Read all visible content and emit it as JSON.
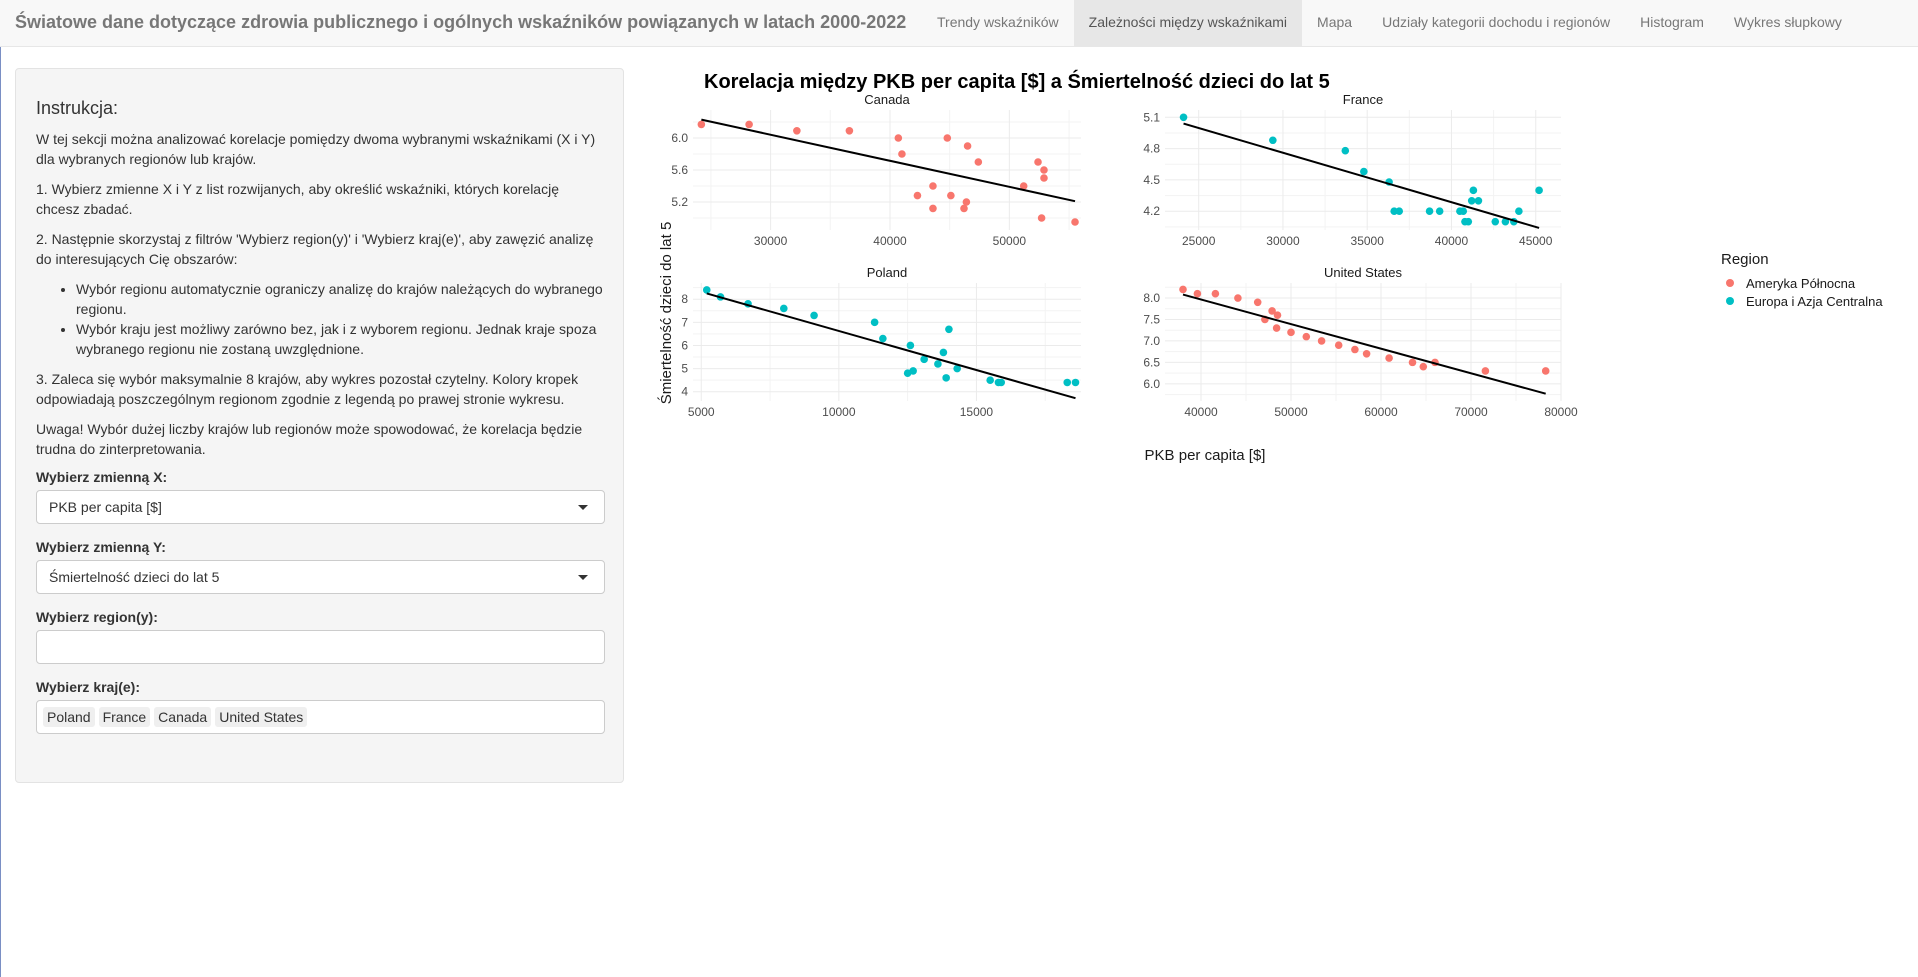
{
  "navbar": {
    "title": "Światowe dane dotyczące zdrowia publicznego i ogólnych wskaźników powiązanych w latach 2000-2022",
    "tabs": [
      {
        "label": "Trendy wskaźników",
        "active": false
      },
      {
        "label": "Zależności między wskaźnikami",
        "active": true
      },
      {
        "label": "Mapa",
        "active": false
      },
      {
        "label": "Udziały kategorii dochodu i regionów",
        "active": false
      },
      {
        "label": "Histogram",
        "active": false
      },
      {
        "label": "Wykres słupkowy",
        "active": false
      }
    ]
  },
  "sidebar": {
    "title": "Instrukcja:",
    "p1": "W tej sekcji można analizować korelacje pomiędzy dwoma wybranymi wskaźnikami (X i Y) dla wybranych regionów lub krajów.",
    "p2": "1. Wybierz zmienne X i Y z list rozwijanych, aby określić wskaźniki, których korelację chcesz zbadać.",
    "p3": "2. Następnie skorzystaj z filtrów 'Wybierz region(y)' i 'Wybierz kraj(e)', aby zawęzić analizę do interesujących Cię obszarów:",
    "bullets": [
      "Wybór regionu automatycznie ograniczy analizę do krajów należących do wybranego regionu.",
      "Wybór kraju jest możliwy zarówno bez, jak i z wyborem regionu. Jednak kraje spoza wybranego regionu nie zostaną uwzględnione."
    ],
    "p4": "3. Zaleca się wybór maksymalnie 8 krajów, aby wykres pozostał czytelny. Kolory kropek odpowiadają poszczególnym regionom zgodnie z legendą po prawej stronie wykresu.",
    "p5": "Uwaga! Wybór dużej liczby krajów lub regionów może spowodować, że korelacja będzie trudna do zinterpretowania.",
    "x_label": "Wybierz zmienną X:",
    "x_value": "PKB per capita [$]",
    "y_label": "Wybierz zmienną Y:",
    "y_value": "Śmiertelność dzieci do lat 5",
    "region_label": "Wybierz region(y):",
    "region_value": "",
    "country_label": "Wybierz kraj(e):",
    "countries": [
      "Poland",
      "France",
      "Canada",
      "United States"
    ]
  },
  "colors": {
    "north_america": "#F8766D",
    "europe_central_asia": "#00BFC4",
    "grid": "#ebebeb",
    "trend": "#000000"
  },
  "chart_data": {
    "type": "scatter",
    "title": "Korelacja między PKB per capita [$] a Śmiertelność dzieci do lat 5",
    "xlabel": "PKB per capita [$]",
    "ylabel": "Śmiertelność dzieci do lat 5",
    "legend": {
      "title": "Region",
      "position": "right",
      "entries": [
        {
          "name": "Ameryka Północna",
          "color": "#F8766D"
        },
        {
          "name": "Europa i Azja Centralna",
          "color": "#00BFC4"
        }
      ]
    },
    "facets": [
      {
        "name": "Canada",
        "region": "Ameryka Północna",
        "xlim": [
          23500,
          56000
        ],
        "ylim": [
          4.85,
          6.35
        ],
        "xticks": [
          30000,
          40000,
          50000
        ],
        "yticks": [
          5.2,
          5.6,
          6.0
        ],
        "ytick_labels": [
          "5.2",
          "5.6",
          "6.0"
        ],
        "points": [
          [
            24200,
            6.17
          ],
          [
            28200,
            6.17
          ],
          [
            32200,
            6.09
          ],
          [
            36600,
            6.09
          ],
          [
            40700,
            6.0
          ],
          [
            41000,
            5.8
          ],
          [
            42300,
            5.28
          ],
          [
            43600,
            5.12
          ],
          [
            43600,
            5.4
          ],
          [
            44800,
            6.0
          ],
          [
            45100,
            5.28
          ],
          [
            46200,
            5.12
          ],
          [
            46400,
            5.2
          ],
          [
            46500,
            5.9
          ],
          [
            47400,
            5.7
          ],
          [
            51200,
            5.4
          ],
          [
            52400,
            5.7
          ],
          [
            52700,
            5.0
          ],
          [
            52900,
            5.6
          ],
          [
            52900,
            5.5
          ],
          [
            55500,
            4.95
          ]
        ],
        "trend": [
          [
            24200,
            6.23
          ],
          [
            55500,
            5.21
          ]
        ]
      },
      {
        "name": "France",
        "region": "Europa i Azja Centralna",
        "xlim": [
          23000,
          46500
        ],
        "ylim": [
          4.02,
          5.17
        ],
        "xticks": [
          25000,
          30000,
          35000,
          40000,
          45000
        ],
        "yticks": [
          4.2,
          4.5,
          4.8,
          5.1
        ],
        "ytick_labels": [
          "4.2",
          "4.5",
          "4.8",
          "5.1"
        ],
        "points": [
          [
            24100,
            5.1
          ],
          [
            29400,
            4.88
          ],
          [
            33700,
            4.78
          ],
          [
            34800,
            4.58
          ],
          [
            36300,
            4.48
          ],
          [
            36600,
            4.2
          ],
          [
            36900,
            4.2
          ],
          [
            38700,
            4.2
          ],
          [
            39300,
            4.2
          ],
          [
            40500,
            4.2
          ],
          [
            40700,
            4.2
          ],
          [
            40800,
            4.1
          ],
          [
            41000,
            4.1
          ],
          [
            41200,
            4.3
          ],
          [
            41300,
            4.4
          ],
          [
            41600,
            4.3
          ],
          [
            42600,
            4.1
          ],
          [
            43200,
            4.1
          ],
          [
            43700,
            4.1
          ],
          [
            44000,
            4.2
          ],
          [
            45200,
            4.4
          ]
        ],
        "trend": [
          [
            24100,
            5.04
          ],
          [
            45200,
            4.04
          ]
        ]
      },
      {
        "name": "Poland",
        "region": "Europa i Azja Centralna",
        "xlim": [
          4700,
          18800
        ],
        "ylim": [
          3.6,
          8.7
        ],
        "xticks": [
          5000,
          10000,
          15000
        ],
        "yticks": [
          4,
          5,
          6,
          7,
          8
        ],
        "ytick_labels": [
          "4",
          "5",
          "6",
          "7",
          "8"
        ],
        "points": [
          [
            5200,
            8.4
          ],
          [
            5700,
            8.1
          ],
          [
            6700,
            7.8
          ],
          [
            8000,
            7.6
          ],
          [
            9100,
            7.3
          ],
          [
            11300,
            7.0
          ],
          [
            11600,
            6.3
          ],
          [
            12500,
            4.8
          ],
          [
            12600,
            6.0
          ],
          [
            12700,
            4.9
          ],
          [
            13100,
            5.4
          ],
          [
            13600,
            5.2
          ],
          [
            13800,
            5.7
          ],
          [
            13900,
            4.6
          ],
          [
            14000,
            6.7
          ],
          [
            14300,
            5.0
          ],
          [
            15500,
            4.5
          ],
          [
            15800,
            4.4
          ],
          [
            15900,
            4.4
          ],
          [
            18300,
            4.4
          ],
          [
            18600,
            4.4
          ]
        ],
        "trend": [
          [
            5200,
            8.25
          ],
          [
            18600,
            3.72
          ]
        ]
      },
      {
        "name": "United States",
        "region": "Ameryka Północna",
        "xlim": [
          36000,
          80000
        ],
        "ylim": [
          5.6,
          8.35
        ],
        "xticks": [
          40000,
          50000,
          60000,
          70000,
          80000
        ],
        "yticks": [
          6.0,
          6.5,
          7.0,
          7.5,
          8.0
        ],
        "ytick_labels": [
          "6.0",
          "6.5",
          "7.0",
          "7.5",
          "8.0"
        ],
        "points": [
          [
            38000,
            8.2
          ],
          [
            39600,
            8.1
          ],
          [
            41600,
            8.1
          ],
          [
            44100,
            8.0
          ],
          [
            46300,
            7.9
          ],
          [
            47100,
            7.5
          ],
          [
            47900,
            7.7
          ],
          [
            48400,
            7.3
          ],
          [
            48500,
            7.6
          ],
          [
            50000,
            7.2
          ],
          [
            51700,
            7.1
          ],
          [
            53400,
            7.0
          ],
          [
            55300,
            6.9
          ],
          [
            57100,
            6.8
          ],
          [
            58400,
            6.7
          ],
          [
            60900,
            6.6
          ],
          [
            63500,
            6.5
          ],
          [
            64700,
            6.4
          ],
          [
            66000,
            6.5
          ],
          [
            71600,
            6.3
          ],
          [
            78300,
            6.3
          ]
        ],
        "trend": [
          [
            38000,
            8.08
          ],
          [
            78300,
            5.77
          ]
        ]
      }
    ]
  }
}
